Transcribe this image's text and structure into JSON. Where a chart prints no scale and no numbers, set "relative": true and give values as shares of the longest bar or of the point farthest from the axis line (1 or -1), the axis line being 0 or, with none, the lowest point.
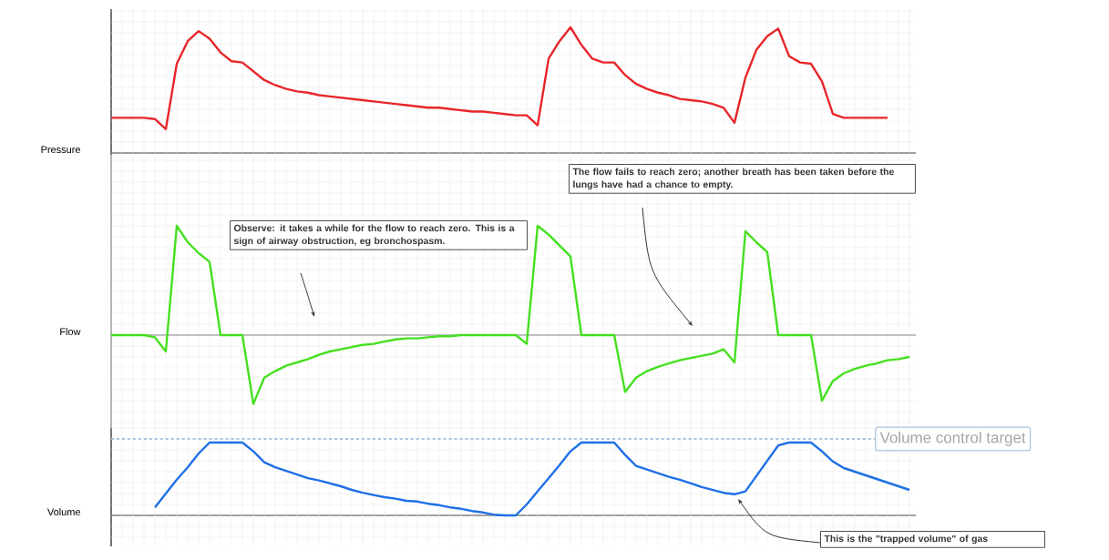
{
  "chart_data": [
    {
      "type": "line",
      "relative": true,
      "grid": true,
      "ylabel": "Pressure",
      "categories": [
        null,
        null,
        null,
        null,
        null,
        null,
        null,
        null,
        null,
        null,
        null,
        null,
        null,
        null,
        null,
        null,
        null,
        null,
        null,
        null,
        null,
        null,
        null,
        null,
        null,
        null,
        null,
        null,
        null,
        null,
        null,
        null,
        null,
        null,
        null,
        null,
        null,
        null,
        null,
        null,
        null,
        null,
        null,
        null,
        null,
        null,
        null,
        null,
        null,
        null,
        null,
        null,
        null,
        null,
        null,
        null,
        null,
        null,
        null,
        null,
        null,
        null,
        null,
        null,
        null,
        null,
        null,
        null,
        null,
        null,
        null,
        null,
        null,
        null
      ],
      "series": [
        {
          "color": "#e8262a",
          "values": [
            0.28,
            0.28,
            0.28,
            0.28,
            0.27,
            0.19,
            0.71,
            0.89,
            0.97,
            0.91,
            0.8,
            0.73,
            0.72,
            0.65,
            0.58,
            0.54,
            0.51,
            0.49,
            0.48,
            0.46,
            0.45,
            0.44,
            0.43,
            0.42,
            0.41,
            0.4,
            0.39,
            0.38,
            0.37,
            0.36,
            0.36,
            0.35,
            0.34,
            0.33,
            0.33,
            0.32,
            0.31,
            0.3,
            0.3,
            0.22,
            0.75,
            0.89,
            1,
            0.86,
            0.75,
            0.72,
            0.72,
            0.62,
            0.55,
            0.51,
            0.48,
            0.46,
            0.43,
            0.42,
            0.41,
            0.39,
            0.36,
            0.24,
            0.6,
            0.82,
            0.93,
            0.99,
            0.77,
            0.72,
            0.71,
            0.57,
            0.31,
            0.28,
            0.28,
            0.28,
            0.28,
            0.28,
            null,
            null
          ]
        }
      ]
    },
    {
      "type": "line",
      "relative": true,
      "grid": true,
      "ylabel": "Flow",
      "categories": [
        null,
        null,
        null,
        null,
        null,
        null,
        null,
        null,
        null,
        null,
        null,
        null,
        null,
        null,
        null,
        null,
        null,
        null,
        null,
        null,
        null,
        null,
        null,
        null,
        null,
        null,
        null,
        null,
        null,
        null,
        null,
        null,
        null,
        null,
        null,
        null,
        null,
        null,
        null,
        null,
        null,
        null,
        null,
        null,
        null,
        null,
        null,
        null,
        null,
        null,
        null,
        null,
        null,
        null,
        null,
        null,
        null,
        null,
        null,
        null,
        null,
        null,
        null,
        null,
        null,
        null,
        null,
        null,
        null,
        null,
        null,
        null,
        null,
        null
      ],
      "series": [
        {
          "color": "#44e01e",
          "values": [
            0,
            0,
            0,
            0,
            -0.02,
            -0.15,
            1,
            0.85,
            0.75,
            0.67,
            0,
            0,
            0,
            -0.63,
            -0.39,
            -0.33,
            -0.28,
            -0.25,
            -0.22,
            -0.18,
            -0.15,
            -0.13,
            -0.11,
            -0.09,
            -0.08,
            -0.06,
            -0.04,
            -0.03,
            -0.03,
            -0.02,
            -0.01,
            -0.01,
            0,
            0,
            0,
            0,
            0,
            0,
            -0.08,
            1,
            0.92,
            0.82,
            0.72,
            0,
            0,
            0,
            0,
            -0.52,
            -0.39,
            -0.33,
            -0.29,
            -0.26,
            -0.23,
            -0.21,
            -0.19,
            -0.17,
            -0.13,
            -0.25,
            0.95,
            0.85,
            0.76,
            0,
            0,
            0,
            0,
            -0.6,
            -0.42,
            -0.35,
            -0.31,
            -0.28,
            -0.26,
            -0.23,
            -0.22,
            -0.2
          ]
        }
      ],
      "annotations": [
        "Observe: it takes a while for the flow to reach zero. This is a sign of airway obstruction, eg bronchospasm.",
        "The flow fails to reach zero; another breath has been taken before the lungs have had a chance to empty."
      ]
    },
    {
      "type": "line",
      "relative": true,
      "grid": true,
      "ylabel": "Volume",
      "categories": [
        null,
        null,
        null,
        null,
        null,
        null,
        null,
        null,
        null,
        null,
        null,
        null,
        null,
        null,
        null,
        null,
        null,
        null,
        null,
        null,
        null,
        null,
        null,
        null,
        null,
        null,
        null,
        null,
        null,
        null,
        null,
        null,
        null,
        null,
        null,
        null,
        null,
        null,
        null,
        null,
        null,
        null,
        null,
        null,
        null,
        null,
        null,
        null,
        null,
        null,
        null,
        null,
        null,
        null,
        null,
        null,
        null,
        null,
        null,
        null,
        null,
        null,
        null,
        null,
        null,
        null,
        null,
        null,
        null,
        null,
        null,
        null,
        null,
        null
      ],
      "series": [
        {
          "color": "#1f6fe8",
          "values": [
            null,
            null,
            null,
            null,
            0.11,
            0.3,
            0.49,
            0.66,
            0.85,
            1,
            1,
            1,
            1,
            0.88,
            0.73,
            0.66,
            0.61,
            0.56,
            0.51,
            0.48,
            0.44,
            0.4,
            0.35,
            0.31,
            0.28,
            0.25,
            0.23,
            0.2,
            0.19,
            0.16,
            0.14,
            0.11,
            0.09,
            0.06,
            0.04,
            0.01,
            0,
            0,
            0.15,
            0.33,
            0.51,
            0.69,
            0.88,
            1,
            1,
            1,
            1,
            0.83,
            0.68,
            0.63,
            0.58,
            0.53,
            0.49,
            0.44,
            0.39,
            0.35,
            0.31,
            0.29,
            0.33,
            0.54,
            0.75,
            0.96,
            1,
            1,
            1,
            0.88,
            0.74,
            0.65,
            0.6,
            0.55,
            0.5,
            0.45,
            0.4,
            0.35
          ]
        }
      ],
      "ref_lines": [
        {
          "axis": "y",
          "value": 1.05,
          "label": "Volume control target",
          "color": "#a9c4e0",
          "line_style": "dashed"
        }
      ],
      "annotations": [
        "This is the \"trapped volume\" of gas"
      ]
    }
  ]
}
